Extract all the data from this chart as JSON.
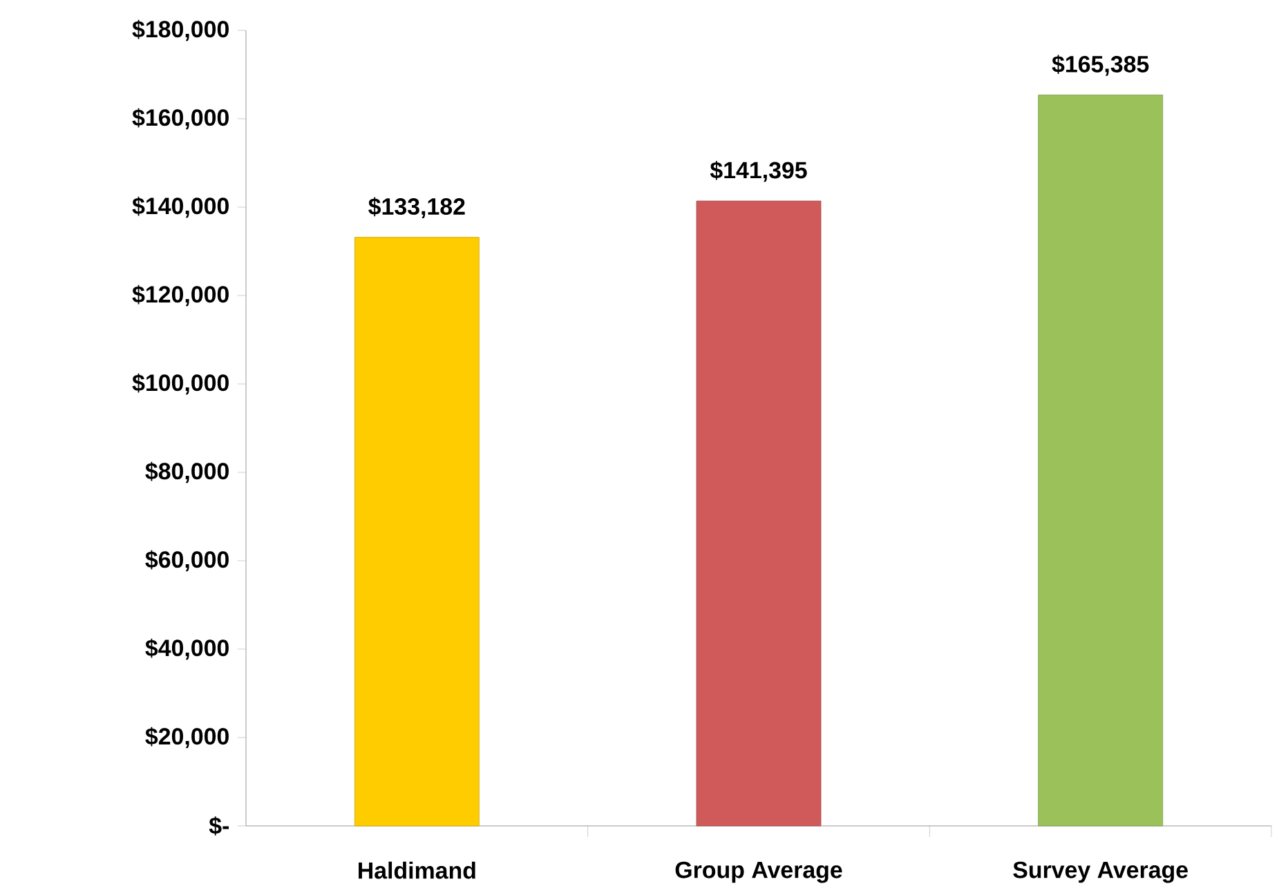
{
  "chart_data": {
    "type": "bar",
    "categories": [
      "Haldimand",
      "Group Average",
      "Survey Average"
    ],
    "values": [
      133182,
      141395,
      165385
    ],
    "value_labels": [
      "$133,182",
      "$141,395",
      "$165,385"
    ],
    "colors": [
      "#ffcc00",
      "#d05a5a",
      "#9bc25a"
    ],
    "ylim": [
      0,
      180000
    ],
    "yticks": [
      {
        "value": 0,
        "label": "$-"
      },
      {
        "value": 20000,
        "label": "$20,000"
      },
      {
        "value": 40000,
        "label": "$40,000"
      },
      {
        "value": 60000,
        "label": "$60,000"
      },
      {
        "value": 80000,
        "label": "$80,000"
      },
      {
        "value": 100000,
        "label": "$100,000"
      },
      {
        "value": 120000,
        "label": "$120,000"
      },
      {
        "value": 140000,
        "label": "$140,000"
      },
      {
        "value": 160000,
        "label": "$160,000"
      },
      {
        "value": 180000,
        "label": "$180,000"
      }
    ],
    "grid": false
  }
}
